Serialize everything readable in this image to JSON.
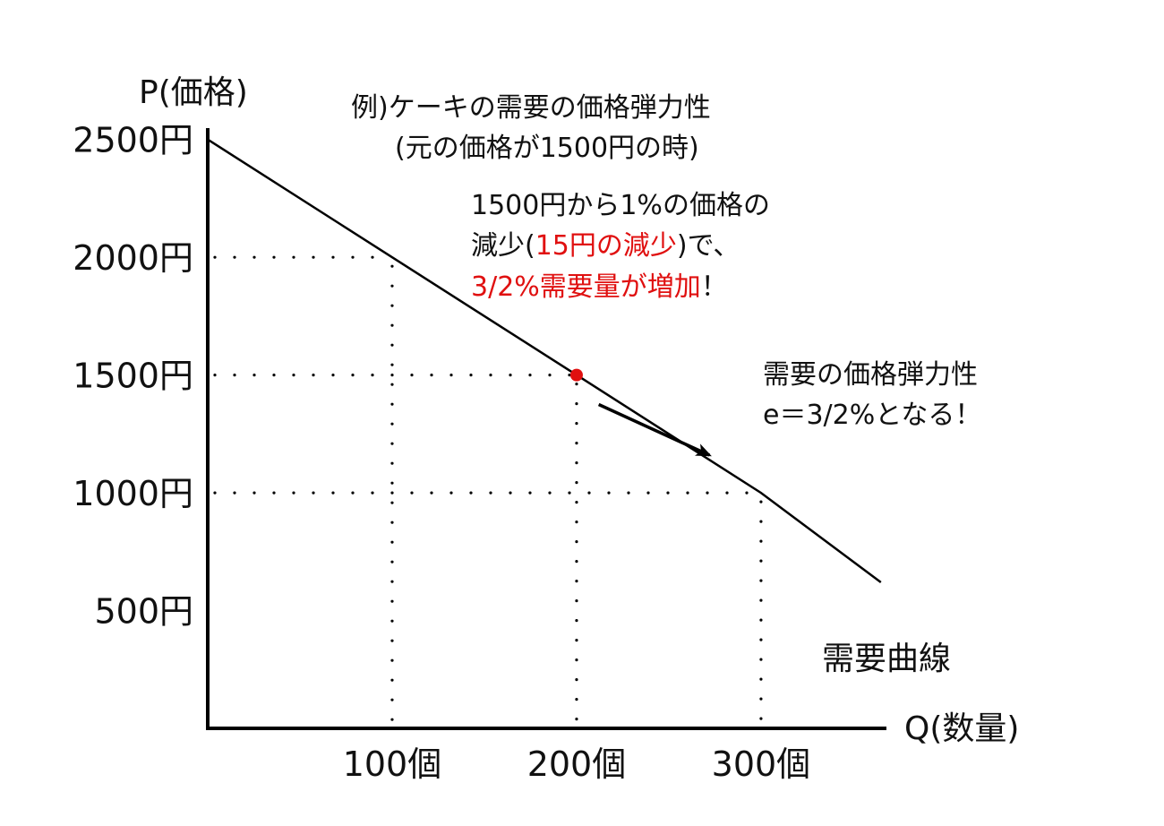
{
  "chart_data": {
    "type": "line",
    "ylabel": "P(価格)",
    "xlabel": "Q(数量)",
    "y_ticks": [
      "2500円",
      "2000円",
      "1500円",
      "1000円",
      "500円"
    ],
    "y_tick_values": [
      2500,
      2000,
      1500,
      1000,
      500
    ],
    "x_ticks": [
      "100個",
      "200個",
      "300個"
    ],
    "x_tick_values": [
      100,
      200,
      300
    ],
    "xlim": [
      0,
      368
    ],
    "ylim": [
      0,
      2750
    ],
    "series": [
      {
        "x": [
          0,
          100,
          200,
          300,
          365
        ],
        "y": [
          2500,
          2000,
          1500,
          1000,
          620
        ]
      }
    ],
    "curve_label": "需要曲線",
    "highlight_point": {
      "x": 200,
      "y": 1500,
      "color": "#e01010"
    },
    "guides": [
      {
        "x": 100,
        "y": 2000
      },
      {
        "x": 200,
        "y": 1500
      },
      {
        "x": 300,
        "y": 1000
      }
    ],
    "arrow": {
      "from": {
        "x": 212,
        "y": 1375
      },
      "to": {
        "x": 272,
        "y": 1160
      }
    },
    "accent_color": "#e01010"
  },
  "annotations": {
    "example_title": "例)ケーキの需要の価格弾力性",
    "example_subtitle": "(元の価格が1500円の時)",
    "note_line1": "1500円から1%の価格の",
    "note_line2_a": "減少(",
    "note_line2_red": "15円の減少",
    "note_line2_b": ")で、",
    "note_line3_red": "3/2%需要量が増加",
    "note_line3_b": "！",
    "result_line1": "需要の価格弾力性",
    "result_line2": "e＝3/2%となる！"
  }
}
